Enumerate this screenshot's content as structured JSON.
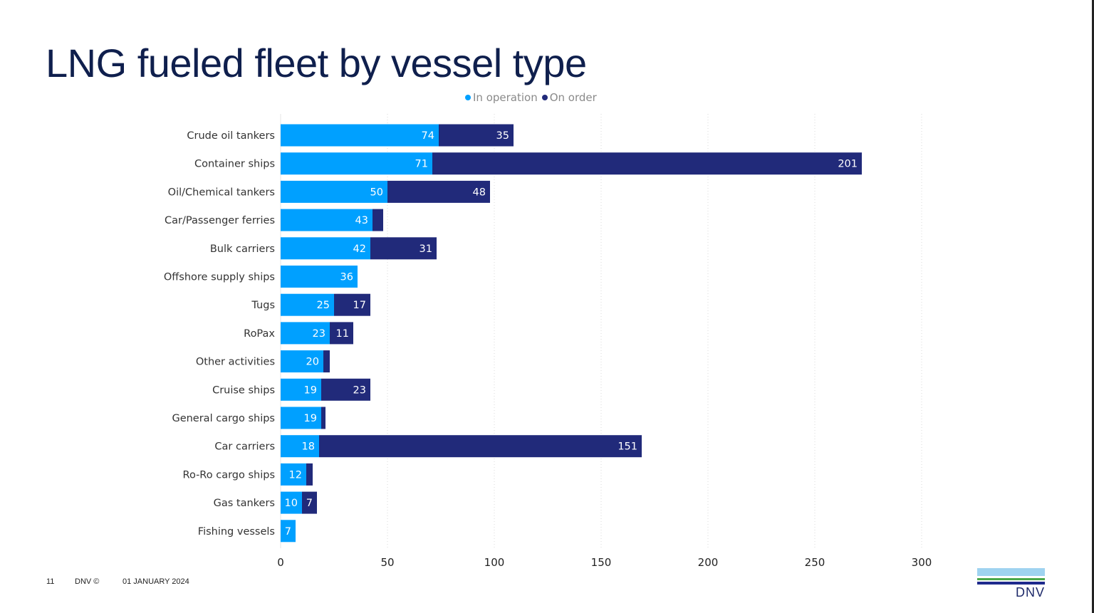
{
  "page": {
    "number": "11",
    "copyright": "DNV ©",
    "date": "01 JANUARY 2024",
    "logo_text": "DNV"
  },
  "chart_data": {
    "type": "bar",
    "orientation": "horizontal",
    "stacked": true,
    "title": "LNG fueled fleet by vessel type",
    "categories": [
      "Crude oil tankers",
      "Container ships",
      "Oil/Chemical tankers",
      "Car/Passenger ferries",
      "Bulk carriers",
      "Offshore supply ships",
      "Tugs",
      "RoPax",
      "Other activities",
      "Cruise ships",
      "General cargo ships",
      "Car carriers",
      "Ro-Ro cargo ships",
      "Gas tankers",
      "Fishing vessels"
    ],
    "series": [
      {
        "name": "In operation",
        "color": "#00a0ff",
        "values": [
          74,
          71,
          50,
          43,
          42,
          36,
          25,
          23,
          20,
          19,
          19,
          18,
          12,
          10,
          7
        ]
      },
      {
        "name": "On order",
        "color": "#212a7a",
        "values": [
          35,
          201,
          48,
          5,
          31,
          0,
          17,
          11,
          3,
          23,
          2,
          151,
          3,
          7,
          0
        ]
      }
    ],
    "xlim": [
      0,
      300
    ],
    "xticks": [
      0,
      50,
      100,
      150,
      200,
      250,
      300
    ],
    "grid": "vertical dotted",
    "legend": "top"
  }
}
